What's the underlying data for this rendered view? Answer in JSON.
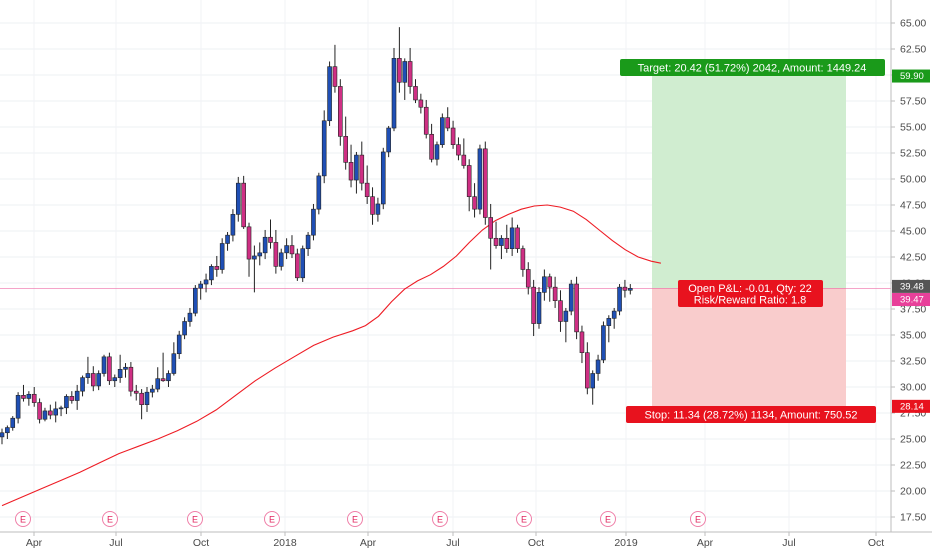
{
  "chart_data": {
    "type": "candlestick",
    "y_axis": {
      "ticks": [
        17.5,
        20,
        22.5,
        25,
        27.5,
        30,
        32.5,
        35,
        37.5,
        40,
        42.5,
        45,
        47.5,
        50,
        52.5,
        55,
        57.5,
        60,
        62.5,
        65
      ],
      "min": 16,
      "max": 66.6,
      "position": "right"
    },
    "x_axis": {
      "labels": [
        "Apr",
        "Jul",
        "Oct",
        "2018",
        "Apr",
        "Jul",
        "Oct",
        "2019",
        "Apr",
        "Jul",
        "Oct"
      ]
    },
    "earnings_marker_label": "E",
    "price_tags": {
      "last_price": "39.48",
      "marker_price": "39.47",
      "target_price": "59.90",
      "stop_price": "28.14"
    },
    "position": {
      "target_text": "Target: 20.42 (51.72%) 2042, Amount: 1449.24",
      "pnl_text": "Open P&L: -0.01, Qty: 22",
      "rr_text": "Risk/Reward Ratio: 1.8",
      "stop_text": "Stop: 11.34 (28.72%) 1134, Amount: 750.52",
      "entry": 39.48,
      "target": 59.9,
      "stop": 28.14
    },
    "candles": [
      [
        25.2,
        26.0,
        24.5,
        25.6
      ],
      [
        25.6,
        26.3,
        25.0,
        26.1
      ],
      [
        26.1,
        27.2,
        25.8,
        27.0
      ],
      [
        27.0,
        29.5,
        26.5,
        29.2
      ],
      [
        29.2,
        30.2,
        28.6,
        28.9
      ],
      [
        28.9,
        29.6,
        28.2,
        29.3
      ],
      [
        29.3,
        30.0,
        28.1,
        28.5
      ],
      [
        28.5,
        28.9,
        26.5,
        26.9
      ],
      [
        26.9,
        28.0,
        26.7,
        27.7
      ],
      [
        27.7,
        28.3,
        26.9,
        27.3
      ],
      [
        27.3,
        28.6,
        26.6,
        27.9
      ],
      [
        27.9,
        28.2,
        27.2,
        28.0
      ],
      [
        28.0,
        29.3,
        27.4,
        29.1
      ],
      [
        29.1,
        29.6,
        28.4,
        28.7
      ],
      [
        28.7,
        30.2,
        27.8,
        29.6
      ],
      [
        29.6,
        31.1,
        29.1,
        30.9
      ],
      [
        30.9,
        32.9,
        30.3,
        31.3
      ],
      [
        31.3,
        32.0,
        29.6,
        30.1
      ],
      [
        30.1,
        31.6,
        29.7,
        31.3
      ],
      [
        31.3,
        33.1,
        31.0,
        32.9
      ],
      [
        32.9,
        33.3,
        30.2,
        30.6
      ],
      [
        30.6,
        31.2,
        30.0,
        30.9
      ],
      [
        30.9,
        33.1,
        30.4,
        31.7
      ],
      [
        31.7,
        32.3,
        30.9,
        31.9
      ],
      [
        31.9,
        32.4,
        29.1,
        29.6
      ],
      [
        29.6,
        30.2,
        28.7,
        29.4
      ],
      [
        29.4,
        29.8,
        26.9,
        28.3
      ],
      [
        28.3,
        30.0,
        27.6,
        29.5
      ],
      [
        29.5,
        30.2,
        29.0,
        29.8
      ],
      [
        29.8,
        31.9,
        29.5,
        30.8
      ],
      [
        30.8,
        33.3,
        30.5,
        30.6
      ],
      [
        30.6,
        31.6,
        30.0,
        31.3
      ],
      [
        31.3,
        34.3,
        31.1,
        33.2
      ],
      [
        33.2,
        35.4,
        32.7,
        35.0
      ],
      [
        35.0,
        36.7,
        34.6,
        36.3
      ],
      [
        36.3,
        37.6,
        35.8,
        37.1
      ],
      [
        37.1,
        39.8,
        36.8,
        39.5
      ],
      [
        39.5,
        40.2,
        38.4,
        39.9
      ],
      [
        39.9,
        40.9,
        39.1,
        40.3
      ],
      [
        40.3,
        41.8,
        39.8,
        41.6
      ],
      [
        41.6,
        42.6,
        40.6,
        41.3
      ],
      [
        41.3,
        44.3,
        40.9,
        43.8
      ],
      [
        43.8,
        44.9,
        43.1,
        44.6
      ],
      [
        44.6,
        47.1,
        44.0,
        46.6
      ],
      [
        46.6,
        50.2,
        45.9,
        49.6
      ],
      [
        49.6,
        50.3,
        45.2,
        45.4
      ],
      [
        45.4,
        45.8,
        40.6,
        42.3
      ],
      [
        42.3,
        43.6,
        39.1,
        42.6
      ],
      [
        42.6,
        43.9,
        41.7,
        42.9
      ],
      [
        42.9,
        45.1,
        42.3,
        44.4
      ],
      [
        44.4,
        46.1,
        43.3,
        43.9
      ],
      [
        43.9,
        45.1,
        40.9,
        41.6
      ],
      [
        41.6,
        43.3,
        41.2,
        42.9
      ],
      [
        42.9,
        44.3,
        42.3,
        43.6
      ],
      [
        43.6,
        44.6,
        42.4,
        42.8
      ],
      [
        42.8,
        43.3,
        40.2,
        40.5
      ],
      [
        40.5,
        43.6,
        40.1,
        43.3
      ],
      [
        43.3,
        44.9,
        42.6,
        44.6
      ],
      [
        44.6,
        47.6,
        44.1,
        47.1
      ],
      [
        47.1,
        50.6,
        46.6,
        50.3
      ],
      [
        50.3,
        56.6,
        49.6,
        55.6
      ],
      [
        55.6,
        61.3,
        55.1,
        60.8
      ],
      [
        60.8,
        62.9,
        58.3,
        58.9
      ],
      [
        58.9,
        59.6,
        53.2,
        54.1
      ],
      [
        54.1,
        56.0,
        50.9,
        51.6
      ],
      [
        51.6,
        53.3,
        49.2,
        49.9
      ],
      [
        49.9,
        52.6,
        48.6,
        52.3
      ],
      [
        52.3,
        53.6,
        48.9,
        49.6
      ],
      [
        49.6,
        51.3,
        47.6,
        48.3
      ],
      [
        48.3,
        49.2,
        45.6,
        46.6
      ],
      [
        46.6,
        48.2,
        45.9,
        47.6
      ],
      [
        47.6,
        53.0,
        47.1,
        52.6
      ],
      [
        52.6,
        55.1,
        52.1,
        54.9
      ],
      [
        54.9,
        62.6,
        54.6,
        61.6
      ],
      [
        61.6,
        64.6,
        58.3,
        59.3
      ],
      [
        59.3,
        61.6,
        57.6,
        61.3
      ],
      [
        61.3,
        62.6,
        58.2,
        58.9
      ],
      [
        58.9,
        59.6,
        57.3,
        57.6
      ],
      [
        57.6,
        58.2,
        56.3,
        56.9
      ],
      [
        56.9,
        57.6,
        53.9,
        54.3
      ],
      [
        54.3,
        55.3,
        51.6,
        51.9
      ],
      [
        51.9,
        53.6,
        51.3,
        53.3
      ],
      [
        53.3,
        56.3,
        53.0,
        55.9
      ],
      [
        55.9,
        56.9,
        54.6,
        54.9
      ],
      [
        54.9,
        55.6,
        52.9,
        53.3
      ],
      [
        53.3,
        54.0,
        51.8,
        52.3
      ],
      [
        52.3,
        53.9,
        51.0,
        51.3
      ],
      [
        51.3,
        51.9,
        46.9,
        48.3
      ],
      [
        48.3,
        49.6,
        46.3,
        47.1
      ],
      [
        47.1,
        53.3,
        46.6,
        52.9
      ],
      [
        52.9,
        53.6,
        45.6,
        46.3
      ],
      [
        46.3,
        47.6,
        41.3,
        44.3
      ],
      [
        44.3,
        45.9,
        43.3,
        43.6
      ],
      [
        43.6,
        44.6,
        42.3,
        44.3
      ],
      [
        44.3,
        45.6,
        42.9,
        43.3
      ],
      [
        43.3,
        46.3,
        42.6,
        45.3
      ],
      [
        45.3,
        45.6,
        42.9,
        43.3
      ],
      [
        43.3,
        43.6,
        40.6,
        41.3
      ],
      [
        41.3,
        42.0,
        38.9,
        39.6
      ],
      [
        39.6,
        40.3,
        34.9,
        36.1
      ],
      [
        36.1,
        39.6,
        35.6,
        39.1
      ],
      [
        39.1,
        41.3,
        38.3,
        40.6
      ],
      [
        40.6,
        40.9,
        38.2,
        39.6
      ],
      [
        39.6,
        40.6,
        37.6,
        38.3
      ],
      [
        38.3,
        39.3,
        35.3,
        36.3
      ],
      [
        36.3,
        37.6,
        34.3,
        37.3
      ],
      [
        37.3,
        40.3,
        36.9,
        39.9
      ],
      [
        39.9,
        40.6,
        34.6,
        35.3
      ],
      [
        35.3,
        35.9,
        32.3,
        33.3
      ],
      [
        33.3,
        34.3,
        29.3,
        29.9
      ],
      [
        29.9,
        31.6,
        28.3,
        31.3
      ],
      [
        31.3,
        33.1,
        30.6,
        32.6
      ],
      [
        32.6,
        36.3,
        32.3,
        35.9
      ],
      [
        35.9,
        36.9,
        34.3,
        36.6
      ],
      [
        36.6,
        37.6,
        35.6,
        37.3
      ],
      [
        37.3,
        39.9,
        36.9,
        39.6
      ],
      [
        39.6,
        40.3,
        38.6,
        39.3
      ],
      [
        39.3,
        39.9,
        38.9,
        39.48
      ]
    ],
    "ma_line": [
      [
        0,
        18.6
      ],
      [
        6,
        19.4
      ],
      [
        12,
        20.2
      ],
      [
        18,
        21.0
      ],
      [
        24,
        21.8
      ],
      [
        30,
        22.7
      ],
      [
        36,
        23.6
      ],
      [
        42,
        24.3
      ],
      [
        48,
        25.0
      ],
      [
        54,
        25.8
      ],
      [
        60,
        26.7
      ],
      [
        66,
        27.8
      ],
      [
        72,
        29.2
      ],
      [
        78,
        30.6
      ],
      [
        84,
        31.8
      ],
      [
        90,
        32.9
      ],
      [
        96,
        34.0
      ],
      [
        102,
        34.8
      ],
      [
        108,
        35.4
      ],
      [
        112,
        35.9
      ],
      [
        116,
        36.8
      ],
      [
        120,
        38.2
      ],
      [
        124,
        39.4
      ],
      [
        128,
        40.2
      ],
      [
        132,
        40.8
      ],
      [
        136,
        41.6
      ],
      [
        140,
        42.6
      ],
      [
        144,
        43.9
      ],
      [
        148,
        45.1
      ],
      [
        152,
        46.0
      ],
      [
        156,
        46.6
      ],
      [
        160,
        47.1
      ],
      [
        164,
        47.4
      ],
      [
        168,
        47.5
      ],
      [
        172,
        47.3
      ],
      [
        176,
        46.9
      ],
      [
        180,
        46.1
      ],
      [
        184,
        45.1
      ],
      [
        188,
        44.1
      ],
      [
        192,
        43.2
      ],
      [
        196,
        42.5
      ],
      [
        200,
        42.1
      ],
      [
        203,
        41.9
      ]
    ],
    "ma_x_scale": {
      "start_index": 0,
      "end_index": 116,
      "span": 203
    }
  }
}
